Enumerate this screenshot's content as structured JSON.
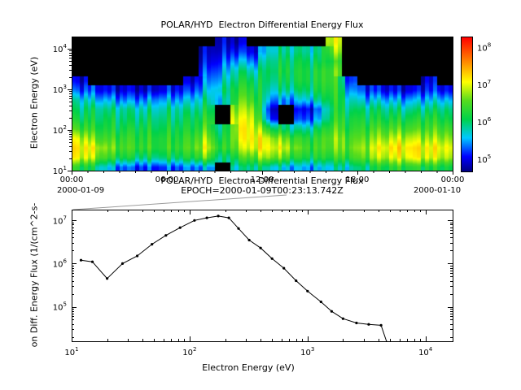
{
  "chart_data": [
    {
      "type": "heatmap",
      "title": "POLAR/HYD  Electron Differential Energy Flux",
      "ylabel": "Electron Energy (eV)",
      "x_axis": {
        "ticks": [
          "00:00",
          "06:00",
          "12:00",
          "18:00",
          "00:00"
        ],
        "tick_hours": [
          0,
          6,
          12,
          18,
          24
        ],
        "date_left": "2000-01-09",
        "date_right": "2000-01-10",
        "range_hours": [
          0,
          24
        ]
      },
      "y_axis": {
        "ticks": [
          "10^1",
          "10^2",
          "10^3",
          "10^4"
        ],
        "tick_log10": [
          1,
          2,
          3,
          4
        ],
        "range_log10_ev": [
          1,
          4.3
        ]
      },
      "colorbar": {
        "ticks": [
          "10^5",
          "10^6",
          "10^7",
          "10^8"
        ],
        "tick_log10": [
          5,
          6,
          7,
          8
        ],
        "range_log10": [
          4.7,
          8.3
        ],
        "stops": [
          [
            4.7,
            "#000082"
          ],
          [
            5.1,
            "#0000ff"
          ],
          [
            5.6,
            "#00c8ff"
          ],
          [
            6.1,
            "#00d24b"
          ],
          [
            6.6,
            "#55dc1e"
          ],
          [
            7.1,
            "#ffff00"
          ],
          [
            7.6,
            "#ff9100"
          ],
          [
            8.3,
            "#ff0000"
          ]
        ]
      },
      "no_data_color": "#000000",
      "grid": {
        "energy_rows_log10": [
          1.08,
          1.32,
          1.56,
          1.79,
          2.03,
          2.27,
          2.51,
          2.74,
          2.98,
          3.21,
          3.45,
          3.69,
          3.93,
          4.17
        ],
        "hour_columns": [
          [
            6.3,
            7.1,
            7.2,
            7.0,
            6.5,
            6.2,
            6.0,
            5.8,
            5.3,
            5.0,
            0,
            0,
            0,
            0
          ],
          [
            6.0,
            6.8,
            7.0,
            6.6,
            6.3,
            6.1,
            6.0,
            5.6,
            5.2,
            0,
            0,
            0,
            0,
            0
          ],
          [
            5.5,
            6.3,
            6.6,
            6.4,
            6.2,
            6.1,
            5.9,
            5.5,
            5.0,
            0,
            0,
            0,
            0,
            0
          ],
          [
            5.3,
            6.2,
            6.5,
            6.4,
            6.2,
            6.0,
            5.9,
            5.4,
            5.0,
            0,
            0,
            0,
            0,
            0
          ],
          [
            5.2,
            6.0,
            6.4,
            6.3,
            6.2,
            6.0,
            5.8,
            5.4,
            4.9,
            0,
            0,
            0,
            0,
            0
          ],
          [
            5.2,
            6.0,
            6.3,
            6.3,
            6.1,
            6.0,
            5.8,
            5.5,
            5.0,
            0,
            0,
            0,
            0,
            0
          ],
          [
            5.3,
            6.1,
            6.4,
            6.3,
            6.2,
            6.0,
            5.9,
            5.5,
            5.1,
            0,
            0,
            0,
            0,
            0
          ],
          [
            5.4,
            6.2,
            6.5,
            6.4,
            6.2,
            6.1,
            5.9,
            5.6,
            5.2,
            4.9,
            0,
            0,
            0,
            0
          ],
          [
            5.5,
            6.6,
            7.0,
            6.8,
            6.5,
            6.3,
            6.1,
            5.9,
            5.6,
            5.4,
            5.2,
            5.0,
            4.9,
            0
          ],
          [
            0,
            5.8,
            6.2,
            6.0,
            5.8,
            0,
            0,
            5.5,
            5.8,
            5.6,
            5.4,
            5.2,
            5.0,
            4.9
          ],
          [
            5.8,
            6.4,
            6.8,
            7.0,
            7.1,
            7.0,
            6.8,
            6.6,
            6.4,
            6.2,
            6.0,
            5.6,
            5.2,
            4.9
          ],
          [
            6.0,
            6.6,
            7.1,
            7.2,
            7.1,
            7.0,
            6.8,
            6.5,
            6.3,
            6.1,
            5.8,
            5.4,
            5.0,
            0
          ],
          [
            5.8,
            6.8,
            7.1,
            6.9,
            6.2,
            5.2,
            5.0,
            5.5,
            5.8,
            6.0,
            6.1,
            6.0,
            5.8,
            0
          ],
          [
            5.6,
            6.5,
            6.9,
            6.6,
            6.0,
            0,
            0,
            5.4,
            5.9,
            6.1,
            6.2,
            6.1,
            5.9,
            0
          ],
          [
            5.5,
            6.2,
            6.5,
            6.3,
            5.8,
            5.2,
            5.0,
            5.6,
            6.0,
            6.2,
            6.2,
            6.1,
            5.9,
            0
          ],
          [
            5.5,
            6.2,
            6.4,
            6.3,
            6.0,
            5.4,
            5.2,
            5.8,
            6.1,
            6.2,
            6.2,
            6.0,
            5.8,
            0
          ],
          [
            5.8,
            6.4,
            6.7,
            6.8,
            6.6,
            6.4,
            6.3,
            6.4,
            6.5,
            6.6,
            6.6,
            6.4,
            6.8,
            7.0
          ],
          [
            5.8,
            6.4,
            6.6,
            6.5,
            6.3,
            6.2,
            6.0,
            5.8,
            5.5,
            5.2,
            0,
            0,
            0,
            0
          ],
          [
            6.0,
            6.6,
            6.8,
            6.6,
            6.4,
            6.2,
            6.0,
            5.6,
            5.2,
            0,
            0,
            0,
            0,
            0
          ],
          [
            6.2,
            6.9,
            7.1,
            6.8,
            6.5,
            6.2,
            6.0,
            5.6,
            5.1,
            0,
            0,
            0,
            0,
            0
          ],
          [
            6.3,
            7.0,
            7.2,
            6.9,
            6.5,
            6.2,
            5.9,
            5.5,
            5.0,
            0,
            0,
            0,
            0,
            0
          ],
          [
            6.3,
            7.1,
            7.2,
            6.9,
            6.5,
            6.2,
            5.9,
            5.5,
            5.0,
            0,
            0,
            0,
            0,
            0
          ],
          [
            6.2,
            7.0,
            7.1,
            6.8,
            6.5,
            6.3,
            6.0,
            5.6,
            5.2,
            5.0,
            0,
            0,
            0,
            0
          ],
          [
            6.2,
            6.9,
            7.1,
            6.8,
            6.5,
            6.2,
            6.0,
            5.6,
            5.1,
            0,
            0,
            0,
            0,
            0
          ]
        ]
      }
    },
    {
      "type": "line",
      "title": "POLAR/HYD  Electron Differential Energy Flux",
      "subtitle": "EPOCH=2000-01-09T00:23:13.742Z",
      "xlabel": "Electron Energy (eV)",
      "ylabel": "on Diff. Energy Flux (1/(cm^2-s-",
      "x_axis": {
        "ticks": [
          "10^1",
          "10^2",
          "10^3",
          "10^4"
        ],
        "tick_log10": [
          1,
          2,
          3,
          4
        ],
        "range_log10": [
          1,
          4.23
        ]
      },
      "y_axis": {
        "ticks": [
          "10^5",
          "10^6",
          "10^7"
        ],
        "tick_log10": [
          5,
          6,
          7
        ],
        "range_log10": [
          4.2,
          7.25
        ]
      },
      "x_ev": [
        12,
        15,
        20,
        27,
        36,
        48,
        63,
        83,
        110,
        140,
        175,
        215,
        260,
        320,
        400,
        500,
        630,
        800,
        1000,
        1300,
        1600,
        2000,
        2600,
        3300,
        4200,
        4700
      ],
      "y_flux": [
        1200000.0,
        1100000.0,
        450000.0,
        1000000.0,
        1500000.0,
        2800000.0,
        4500000.0,
        6800000.0,
        10000000.0,
        11500000.0,
        12600000.0,
        11500000.0,
        6500000.0,
        3500000.0,
        2300000.0,
        1300000.0,
        780000.0,
        400000.0,
        230000.0,
        130000.0,
        78000.0,
        53000.0,
        42000.0,
        39000.0,
        37000.0,
        15000.0
      ],
      "line_color": "#000000",
      "marker": "dot"
    }
  ]
}
